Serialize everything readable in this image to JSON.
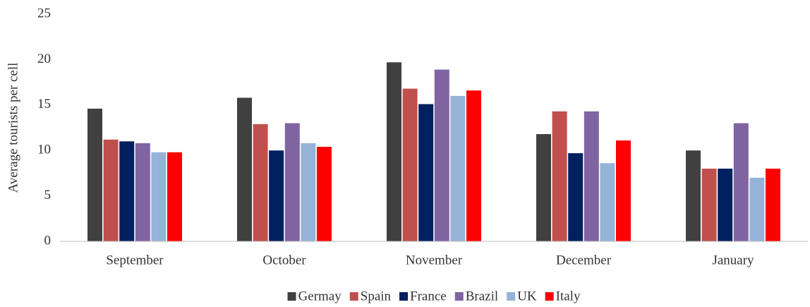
{
  "chart_data": {
    "type": "bar",
    "y_label": "Average tourists per cell",
    "categories": [
      "September",
      "October",
      "November",
      "December",
      "January"
    ],
    "series": [
      {
        "name": "Germay",
        "color": "#404040",
        "values": [
          14.6,
          15.8,
          19.7,
          11.8,
          10.0
        ]
      },
      {
        "name": "Spain",
        "color": "#c0504d",
        "values": [
          11.2,
          12.9,
          16.8,
          14.3,
          8.0
        ]
      },
      {
        "name": "France",
        "color": "#002060",
        "values": [
          11.0,
          10.0,
          15.1,
          9.7,
          8.0
        ]
      },
      {
        "name": "Brazil",
        "color": "#8064a2",
        "values": [
          10.8,
          13.0,
          18.9,
          14.3,
          13.0
        ]
      },
      {
        "name": "UK",
        "color": "#95b3d7",
        "values": [
          9.8,
          10.8,
          16.0,
          8.6,
          7.0
        ]
      },
      {
        "name": "Italy",
        "color": "#ff0000",
        "values": [
          9.8,
          10.4,
          16.6,
          11.1,
          8.0
        ]
      }
    ],
    "ylim": [
      0,
      25
    ],
    "yticks": [
      0,
      5,
      10,
      15,
      20,
      25
    ],
    "grid": false,
    "legend": "bottom"
  }
}
